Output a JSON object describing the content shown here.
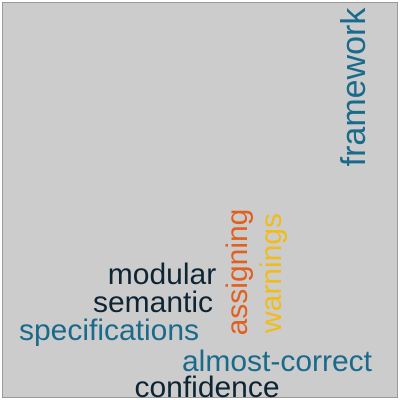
{
  "words": [
    {
      "id": "framework",
      "text": "framework",
      "color": "#1a6a8c",
      "orientation": "vertical"
    },
    {
      "id": "assigning",
      "text": "assigning",
      "color": "#e0601f",
      "orientation": "vertical"
    },
    {
      "id": "warnings",
      "text": "warnings",
      "color": "#f0bc1c",
      "orientation": "vertical"
    },
    {
      "id": "modular",
      "text": "modular",
      "color": "#0d2433",
      "orientation": "horizontal"
    },
    {
      "id": "semantic",
      "text": "semantic",
      "color": "#0d2433",
      "orientation": "horizontal"
    },
    {
      "id": "specifications",
      "text": "specifications",
      "color": "#1a6a8c",
      "orientation": "horizontal"
    },
    {
      "id": "almost-correct",
      "text": "almost-correct",
      "color": "#1a6a8c",
      "orientation": "horizontal"
    },
    {
      "id": "confidence",
      "text": "confidence",
      "color": "#0d2433",
      "orientation": "horizontal"
    }
  ]
}
